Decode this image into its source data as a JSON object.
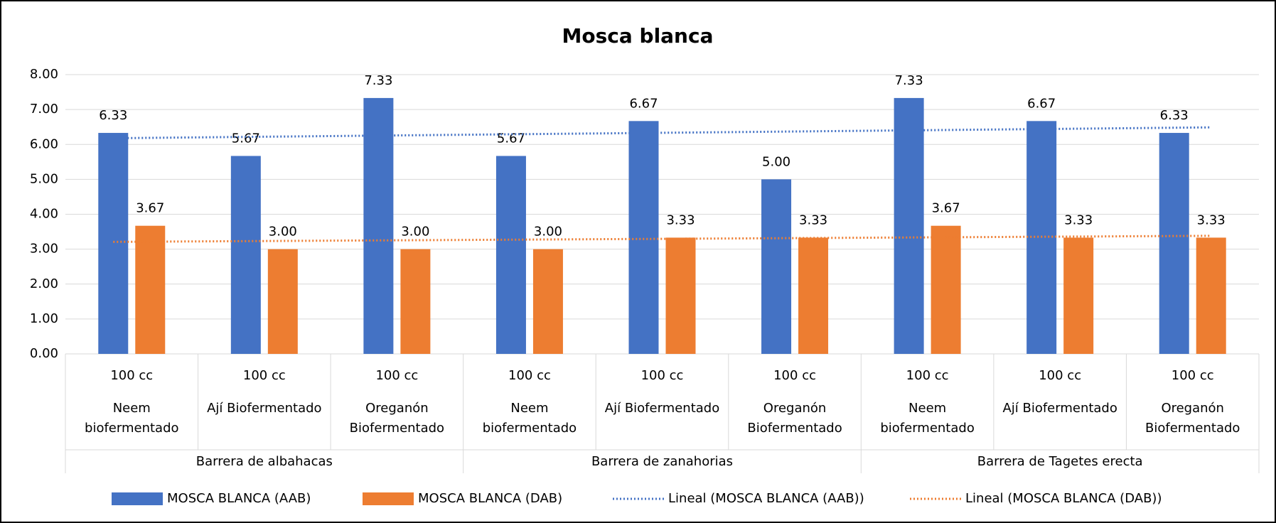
{
  "chart_data": {
    "type": "bar",
    "title": "Mosca blanca",
    "categories": [
      [
        "100 cc",
        "Neem",
        "biofermentado"
      ],
      [
        "100 cc",
        "Ají Biofermentado"
      ],
      [
        "100 cc",
        "Oreganón",
        "Biofermentado"
      ],
      [
        "100 cc",
        "Neem",
        "biofermentado"
      ],
      [
        "100 cc",
        "Ají Biofermentado"
      ],
      [
        "100 cc",
        "Oreganón",
        "Biofermentado"
      ],
      [
        "100 cc",
        "Neem",
        "biofermentado"
      ],
      [
        "100 cc",
        "Ají Biofermentado"
      ],
      [
        "100 cc",
        "Oreganón",
        "Biofermentado"
      ]
    ],
    "groups": [
      "Barrera de albahacas",
      "Barrera de zanahorias",
      "Barrera de Tagetes erecta"
    ],
    "series": [
      {
        "name": "MOSCA BLANCA (AAB)",
        "color": "#4472c4",
        "values": [
          6.33,
          5.67,
          7.33,
          5.67,
          6.67,
          5,
          7.33,
          6.67,
          6.33
        ],
        "value_labels": [
          "6.33",
          "5.67",
          "7.33",
          "5.67",
          "6.67",
          "5.00",
          "7.33",
          "6.67",
          "6.33"
        ],
        "trendline": {
          "name": "Lineal (MOSCA BLANCA (AAB))",
          "color": "#4472c4"
        }
      },
      {
        "name": "MOSCA BLANCA (DAB)",
        "color": "#ed7d31",
        "values": [
          3.67,
          3,
          3,
          3,
          3.33,
          3.33,
          3.67,
          3.33,
          3.33
        ],
        "value_labels": [
          "3.67",
          "3.00",
          "3.00",
          "3.00",
          "3.33",
          "3.33",
          "3.67",
          "3.33",
          "3.33"
        ],
        "trendline": {
          "name": "Lineal (MOSCA BLANCA (DAB))",
          "color": "#ed7d31"
        }
      }
    ],
    "ylim": [
      0,
      8
    ],
    "yticks": [
      {
        "value": 0,
        "label": "0.00"
      },
      {
        "value": 1,
        "label": "1.00"
      },
      {
        "value": 2,
        "label": "2.00"
      },
      {
        "value": 3,
        "label": "3.00"
      },
      {
        "value": 4,
        "label": "4.00"
      },
      {
        "value": 5,
        "label": "5.00"
      },
      {
        "value": 6,
        "label": "6.00"
      },
      {
        "value": 7,
        "label": "7.00"
      },
      {
        "value": 8,
        "label": "8.00"
      }
    ],
    "grid": true,
    "legend": "bottom"
  }
}
